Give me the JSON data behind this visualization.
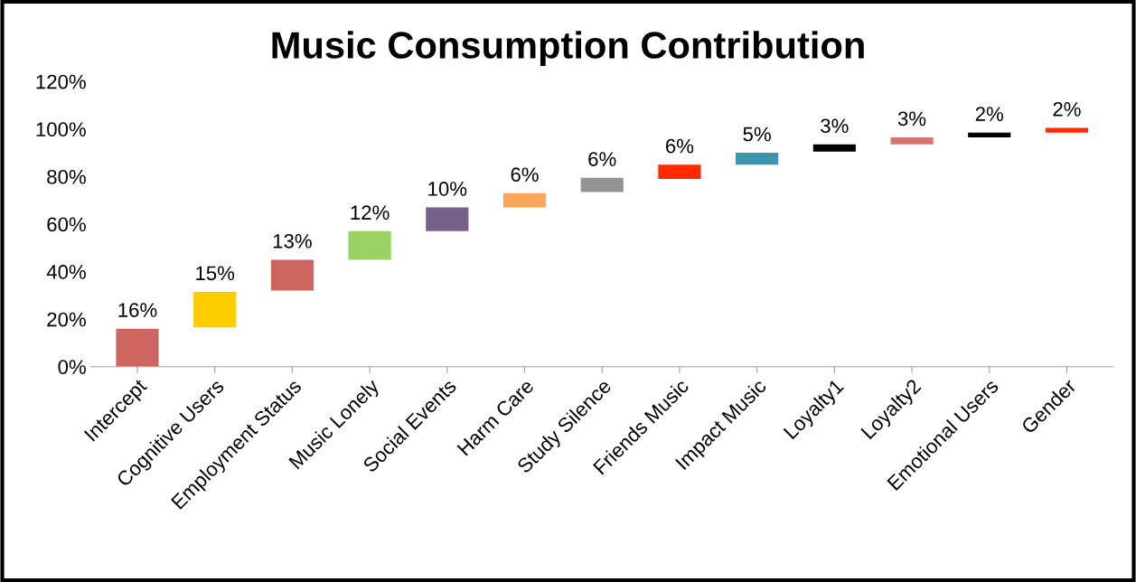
{
  "chart_data": {
    "type": "bar",
    "title": "Music Consumption Contribution",
    "categories": [
      "Intercept",
      "Cognitive Users",
      "Employment Status",
      "Music Lonely",
      "Social Events",
      "Harm Care",
      "Study Silence",
      "Friends Music",
      "Impact Music",
      "Loyalty1",
      "Loyalty2",
      "Emotional Users",
      "Gender"
    ],
    "values": [
      16,
      15,
      13,
      12,
      10,
      6,
      6,
      6,
      5,
      3,
      3,
      2,
      2
    ],
    "base": [
      0,
      16.5,
      32,
      45,
      57,
      67,
      73.5,
      79,
      85,
      90.5,
      93.5,
      96.5,
      98.5
    ],
    "colors": [
      "#cd6660",
      "#ffcc00",
      "#cd6660",
      "#99d163",
      "#76608a",
      "#f9a55a",
      "#939393",
      "#ff2a00",
      "#3b96ad",
      "#000000",
      "#d67373",
      "#000000",
      "#ff2a00"
    ],
    "value_labels": [
      "16%",
      "15%",
      "13%",
      "12%",
      "10%",
      "6%",
      "6%",
      "6%",
      "5%",
      "3%",
      "3%",
      "2%",
      "2%"
    ],
    "ylim": [
      0,
      120
    ],
    "yticks": [
      {
        "value": 0,
        "label": "0%"
      },
      {
        "value": 20,
        "label": "20%"
      },
      {
        "value": 40,
        "label": "40%"
      },
      {
        "value": 60,
        "label": "60%"
      },
      {
        "value": 80,
        "label": "80%"
      },
      {
        "value": 100,
        "label": "100%"
      },
      {
        "value": 120,
        "label": "120%"
      }
    ],
    "grid": false,
    "legend": false
  }
}
